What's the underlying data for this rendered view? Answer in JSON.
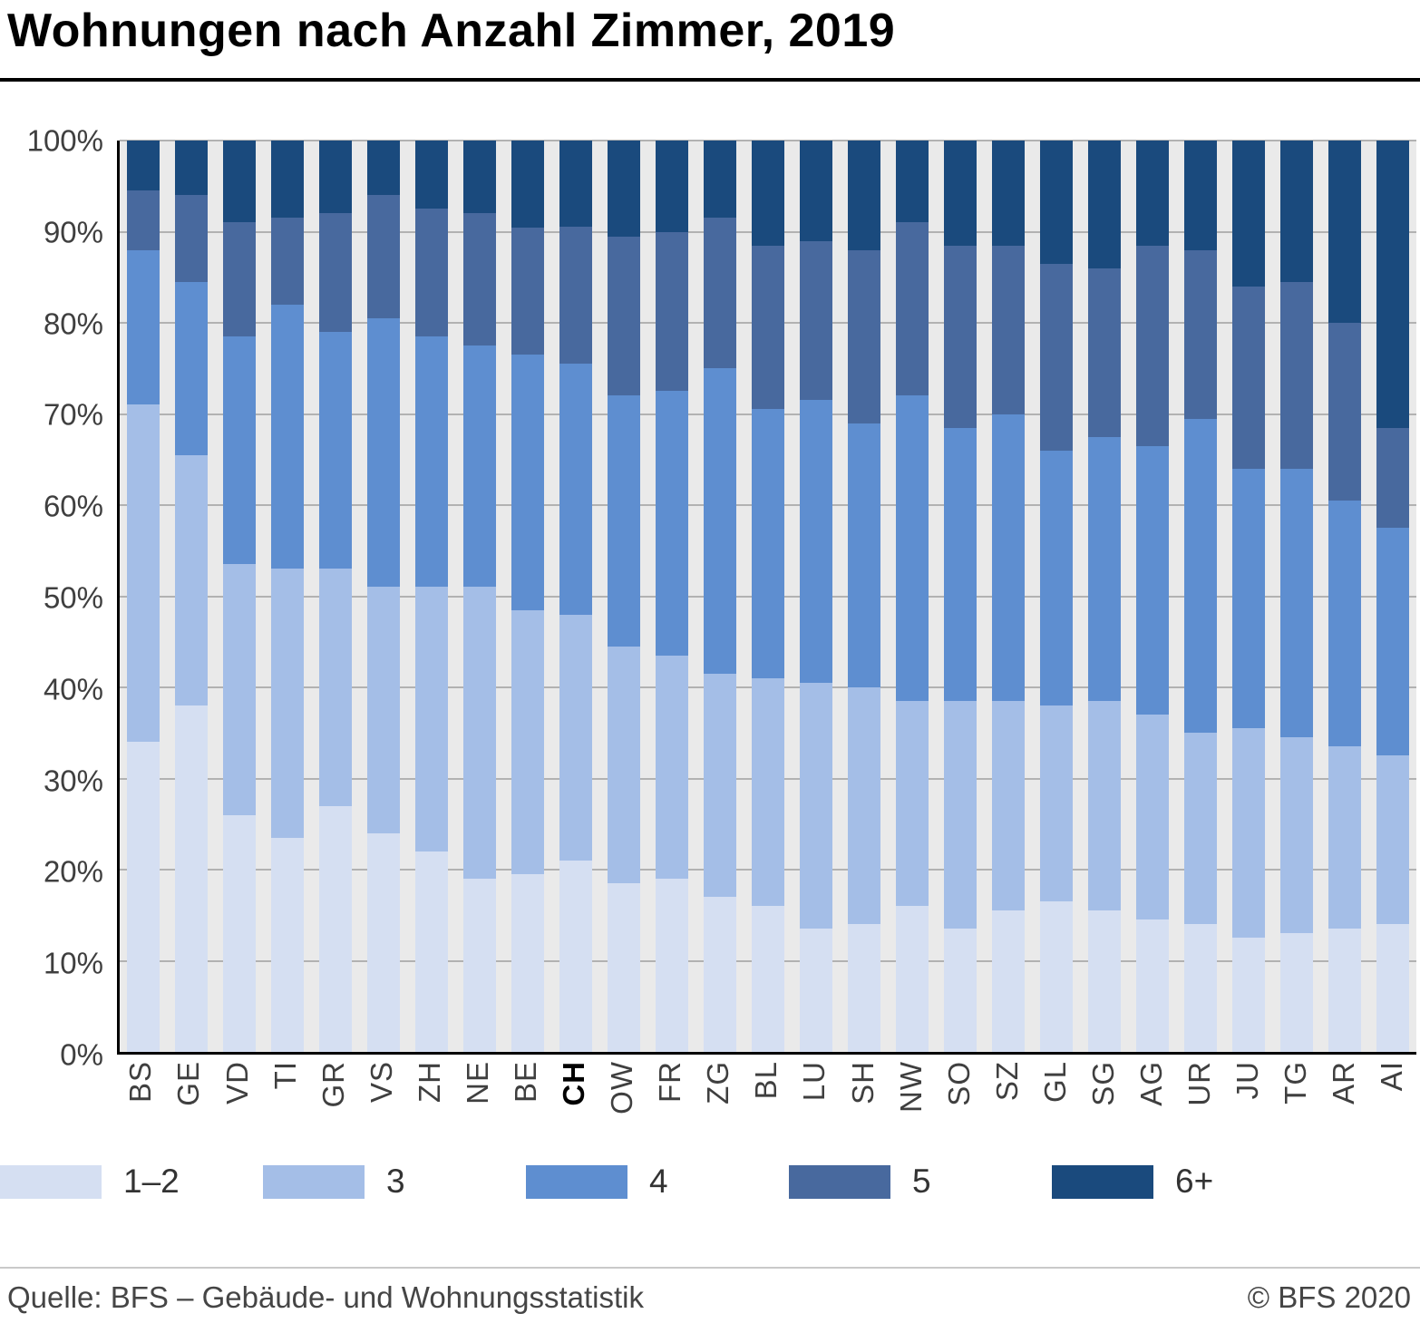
{
  "header": {
    "title": "Wohnungen nach Anzahl Zimmer, 2019"
  },
  "chart_data": {
    "type": "bar",
    "stacked": true,
    "orientation": "vertical",
    "title": "Wohnungen nach Anzahl Zimmer, 2019",
    "xlabel": "",
    "ylabel": "",
    "ylim": [
      0,
      100
    ],
    "grid": true,
    "legend_position": "bottom",
    "yticks": [
      0,
      10,
      20,
      30,
      40,
      50,
      60,
      70,
      80,
      90,
      100
    ],
    "ytick_labels": [
      "0%",
      "10%",
      "20%",
      "30%",
      "40%",
      "50%",
      "60%",
      "70%",
      "80%",
      "90%",
      "100%"
    ],
    "categories": [
      "BS",
      "GE",
      "VD",
      "TI",
      "GR",
      "VS",
      "ZH",
      "NE",
      "BE",
      "CH",
      "OW",
      "FR",
      "ZG",
      "BL",
      "LU",
      "SH",
      "NW",
      "SO",
      "SZ",
      "GL",
      "SG",
      "AG",
      "UR",
      "JU",
      "TG",
      "AR",
      "AI"
    ],
    "highlight_category": "CH",
    "series": [
      {
        "name": "1–2",
        "color": "#d5dff2",
        "values": [
          34,
          38,
          26,
          23.5,
          27,
          24,
          22,
          19,
          19.5,
          21,
          18.5,
          19,
          17,
          16,
          13.5,
          14,
          16,
          13.5,
          15.5,
          16.5,
          15.5,
          14.5,
          14,
          12.5,
          13,
          13.5,
          14
        ]
      },
      {
        "name": "3",
        "color": "#a4bee7",
        "values": [
          37,
          27.5,
          27.5,
          29.5,
          26,
          27,
          29,
          32,
          29,
          27,
          26,
          24.5,
          24.5,
          25,
          27,
          26,
          22.5,
          25,
          23,
          21.5,
          23,
          22.5,
          21,
          23,
          21.5,
          20,
          18.5
        ]
      },
      {
        "name": "4",
        "color": "#5e8ed0",
        "values": [
          17,
          19,
          25,
          29,
          26,
          29.5,
          27.5,
          26.5,
          28,
          27.5,
          27.5,
          29,
          33.5,
          29.5,
          31,
          29,
          33.5,
          30,
          31.5,
          28,
          29,
          29.5,
          34.5,
          28.5,
          29.5,
          27,
          25
        ]
      },
      {
        "name": "5",
        "color": "#48699e",
        "values": [
          6.5,
          9.5,
          12.5,
          9.5,
          13,
          13.5,
          14,
          14.5,
          14,
          15,
          17.5,
          17.5,
          16.5,
          18,
          17.5,
          19,
          19,
          20,
          18.5,
          20.5,
          18.5,
          22,
          18.5,
          20,
          20.5,
          19.5,
          11
        ]
      },
      {
        "name": "6+",
        "color": "#1a4a7d",
        "values": [
          5.5,
          6,
          9,
          8.5,
          8,
          6,
          7.5,
          8,
          9.5,
          9.5,
          10.5,
          10,
          8.5,
          11.5,
          11,
          12,
          9,
          11.5,
          11.5,
          13.5,
          14,
          11.5,
          12,
          16,
          15.5,
          20,
          31.5
        ]
      }
    ]
  },
  "footer": {
    "source": "Quelle: BFS – Gebäude- und Wohnungsstatistik",
    "copyright": "© BFS 2020"
  }
}
